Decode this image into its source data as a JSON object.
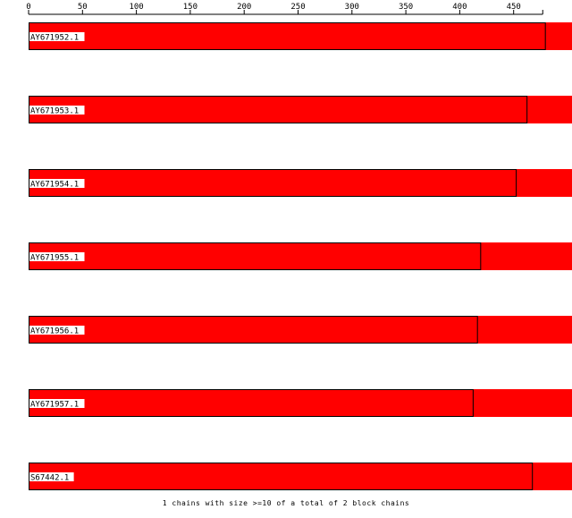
{
  "chart_data": {
    "type": "bar",
    "orientation": "horizontal",
    "title": "",
    "xlabel": "",
    "ylabel": "",
    "xlim": [
      0,
      500
    ],
    "x_ticks": [
      0,
      50,
      100,
      150,
      200,
      250,
      300,
      350,
      400,
      450
    ],
    "axis_end": 477,
    "categories": [
      "AY671952.1",
      "AY671953.1",
      "AY671954.1",
      "AY671955.1",
      "AY671956.1",
      "AY671957.1",
      "S67442.1"
    ],
    "values": [
      479,
      462,
      452,
      419,
      416,
      412,
      467
    ],
    "bar_color": "#ff0000",
    "background_color": "#ff0000",
    "grid": false,
    "legend": "none",
    "footer": "1 chains with size >=10 of a total of 2 block chains"
  }
}
